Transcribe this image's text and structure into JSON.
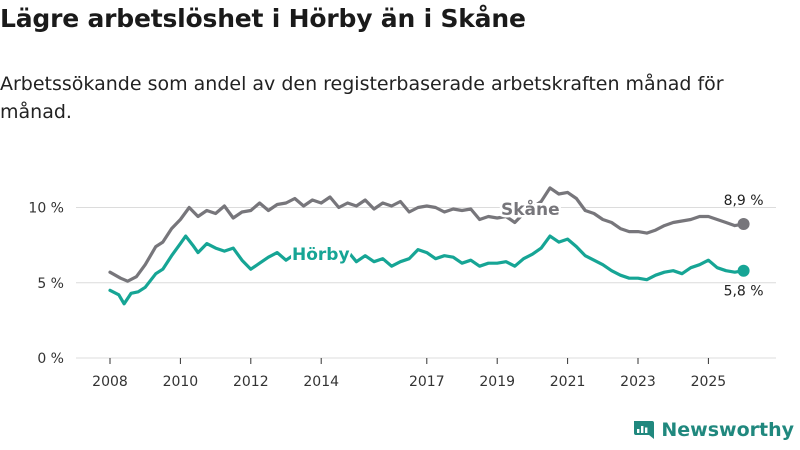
{
  "title": "Lägre arbetslöshet i Hörby än i Skåne",
  "subtitle": "Arbetssökande som andel av den registerbaserade arbetskraften månad för månad.",
  "brand": "Newsworthy",
  "colors": {
    "skane": "#77767b",
    "horby": "#16a595",
    "grid": "#dcdcdc",
    "brand": "#20887e"
  },
  "chart_data": {
    "type": "line",
    "title": "Lägre arbetslöshet i Hörby än i Skåne",
    "ylabel": "",
    "xlabel": "",
    "ylim": [
      0,
      12
    ],
    "y_ticks": [
      0,
      5,
      10
    ],
    "y_tick_labels": [
      "0 %",
      "5 %",
      "10 %"
    ],
    "x_ticks": [
      2008,
      2010,
      2012,
      2014,
      2017,
      2019,
      2021,
      2023,
      2025
    ],
    "x_tick_labels": [
      "2008",
      "2010",
      "2012",
      "2014",
      "2017",
      "2019",
      "2021",
      "2023",
      "2025"
    ],
    "grid": true,
    "series": [
      {
        "name": "Skåne",
        "key": "skane",
        "end_label": "8,9 %",
        "points": [
          [
            2008.0,
            5.7
          ],
          [
            2008.3,
            5.3
          ],
          [
            2008.5,
            5.1
          ],
          [
            2008.75,
            5.4
          ],
          [
            2009.0,
            6.2
          ],
          [
            2009.3,
            7.4
          ],
          [
            2009.5,
            7.7
          ],
          [
            2009.75,
            8.6
          ],
          [
            2010.0,
            9.2
          ],
          [
            2010.25,
            10.0
          ],
          [
            2010.5,
            9.4
          ],
          [
            2010.75,
            9.8
          ],
          [
            2011.0,
            9.6
          ],
          [
            2011.25,
            10.1
          ],
          [
            2011.5,
            9.3
          ],
          [
            2011.75,
            9.7
          ],
          [
            2012.0,
            9.8
          ],
          [
            2012.25,
            10.3
          ],
          [
            2012.5,
            9.8
          ],
          [
            2012.75,
            10.2
          ],
          [
            2013.0,
            10.3
          ],
          [
            2013.25,
            10.6
          ],
          [
            2013.5,
            10.1
          ],
          [
            2013.75,
            10.5
          ],
          [
            2014.0,
            10.3
          ],
          [
            2014.25,
            10.7
          ],
          [
            2014.5,
            10.0
          ],
          [
            2014.75,
            10.3
          ],
          [
            2015.0,
            10.1
          ],
          [
            2015.25,
            10.5
          ],
          [
            2015.5,
            9.9
          ],
          [
            2015.75,
            10.3
          ],
          [
            2016.0,
            10.1
          ],
          [
            2016.25,
            10.4
          ],
          [
            2016.5,
            9.7
          ],
          [
            2016.75,
            10.0
          ],
          [
            2017.0,
            10.1
          ],
          [
            2017.25,
            10.0
          ],
          [
            2017.5,
            9.7
          ],
          [
            2017.75,
            9.9
          ],
          [
            2018.0,
            9.8
          ],
          [
            2018.25,
            9.9
          ],
          [
            2018.5,
            9.2
          ],
          [
            2018.75,
            9.4
          ],
          [
            2019.0,
            9.3
          ],
          [
            2019.25,
            9.4
          ],
          [
            2019.5,
            9.0
          ],
          [
            2019.75,
            9.6
          ],
          [
            2020.0,
            10.0
          ],
          [
            2020.25,
            10.4
          ],
          [
            2020.5,
            11.3
          ],
          [
            2020.75,
            10.9
          ],
          [
            2021.0,
            11.0
          ],
          [
            2021.25,
            10.6
          ],
          [
            2021.5,
            9.8
          ],
          [
            2021.75,
            9.6
          ],
          [
            2022.0,
            9.2
          ],
          [
            2022.25,
            9.0
          ],
          [
            2022.5,
            8.6
          ],
          [
            2022.75,
            8.4
          ],
          [
            2023.0,
            8.4
          ],
          [
            2023.25,
            8.3
          ],
          [
            2023.5,
            8.5
          ],
          [
            2023.75,
            8.8
          ],
          [
            2024.0,
            9.0
          ],
          [
            2024.25,
            9.1
          ],
          [
            2024.5,
            9.2
          ],
          [
            2024.75,
            9.4
          ],
          [
            2025.0,
            9.4
          ],
          [
            2025.25,
            9.2
          ],
          [
            2025.5,
            9.0
          ],
          [
            2025.75,
            8.8
          ],
          [
            2026.0,
            8.9
          ]
        ]
      },
      {
        "name": "Hörby",
        "key": "horby",
        "end_label": "5,8 %",
        "points": [
          [
            2008.0,
            4.5
          ],
          [
            2008.25,
            4.2
          ],
          [
            2008.4,
            3.6
          ],
          [
            2008.6,
            4.3
          ],
          [
            2008.8,
            4.4
          ],
          [
            2009.0,
            4.7
          ],
          [
            2009.3,
            5.6
          ],
          [
            2009.5,
            5.9
          ],
          [
            2009.75,
            6.8
          ],
          [
            2010.0,
            7.6
          ],
          [
            2010.15,
            8.1
          ],
          [
            2010.35,
            7.5
          ],
          [
            2010.5,
            7.0
          ],
          [
            2010.75,
            7.6
          ],
          [
            2011.0,
            7.3
          ],
          [
            2011.25,
            7.1
          ],
          [
            2011.5,
            7.3
          ],
          [
            2011.75,
            6.5
          ],
          [
            2012.0,
            5.9
          ],
          [
            2012.25,
            6.3
          ],
          [
            2012.5,
            6.7
          ],
          [
            2012.75,
            7.0
          ],
          [
            2013.0,
            6.5
          ],
          [
            2013.25,
            6.9
          ],
          [
            2013.5,
            7.0
          ],
          [
            2013.75,
            7.2
          ],
          [
            2014.0,
            7.0
          ],
          [
            2014.25,
            6.8
          ],
          [
            2014.5,
            6.7
          ],
          [
            2014.75,
            7.1
          ],
          [
            2015.0,
            6.4
          ],
          [
            2015.25,
            6.8
          ],
          [
            2015.5,
            6.4
          ],
          [
            2015.75,
            6.6
          ],
          [
            2016.0,
            6.1
          ],
          [
            2016.25,
            6.4
          ],
          [
            2016.5,
            6.6
          ],
          [
            2016.75,
            7.2
          ],
          [
            2017.0,
            7.0
          ],
          [
            2017.25,
            6.6
          ],
          [
            2017.5,
            6.8
          ],
          [
            2017.75,
            6.7
          ],
          [
            2018.0,
            6.3
          ],
          [
            2018.25,
            6.5
          ],
          [
            2018.5,
            6.1
          ],
          [
            2018.75,
            6.3
          ],
          [
            2019.0,
            6.3
          ],
          [
            2019.25,
            6.4
          ],
          [
            2019.5,
            6.1
          ],
          [
            2019.75,
            6.6
          ],
          [
            2020.0,
            6.9
          ],
          [
            2020.25,
            7.3
          ],
          [
            2020.5,
            8.1
          ],
          [
            2020.75,
            7.7
          ],
          [
            2021.0,
            7.9
          ],
          [
            2021.25,
            7.4
          ],
          [
            2021.5,
            6.8
          ],
          [
            2021.75,
            6.5
          ],
          [
            2022.0,
            6.2
          ],
          [
            2022.25,
            5.8
          ],
          [
            2022.5,
            5.5
          ],
          [
            2022.75,
            5.3
          ],
          [
            2023.0,
            5.3
          ],
          [
            2023.25,
            5.2
          ],
          [
            2023.5,
            5.5
          ],
          [
            2023.75,
            5.7
          ],
          [
            2024.0,
            5.8
          ],
          [
            2024.25,
            5.6
          ],
          [
            2024.5,
            6.0
          ],
          [
            2024.75,
            6.2
          ],
          [
            2025.0,
            6.5
          ],
          [
            2025.25,
            6.0
          ],
          [
            2025.5,
            5.8
          ],
          [
            2025.75,
            5.7
          ],
          [
            2026.0,
            5.8
          ]
        ]
      }
    ]
  }
}
